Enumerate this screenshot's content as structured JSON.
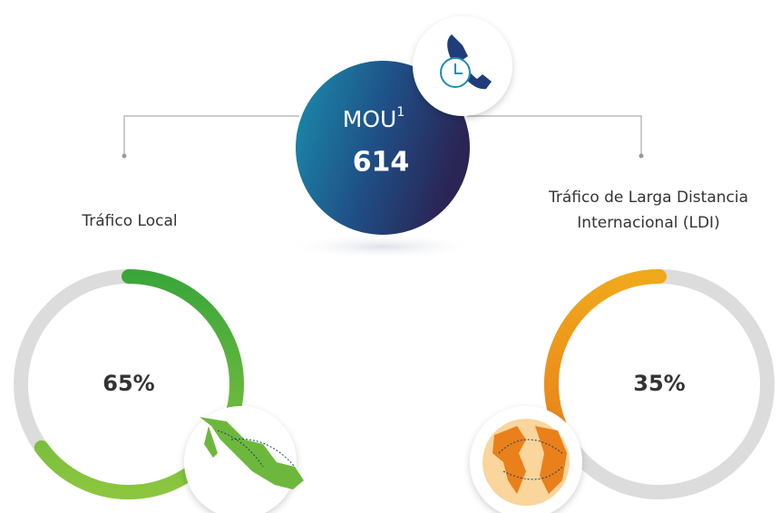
{
  "mou": {
    "label": "MOU",
    "superscript": "1",
    "value": 614
  },
  "chart_data": [
    {
      "type": "donut",
      "title": [
        "Tráfico Local"
      ],
      "values": [
        65
      ],
      "value_labels": [
        "65%"
      ],
      "color": "#4caf3f",
      "direction": "clockwise"
    },
    {
      "type": "donut",
      "title": [
        "Tráfico de Larga Distancia",
        "Internacional (LDI)"
      ],
      "values": [
        35
      ],
      "value_labels": [
        "35%"
      ],
      "color": "#eb8a16",
      "direction": "counterclockwise"
    }
  ]
}
